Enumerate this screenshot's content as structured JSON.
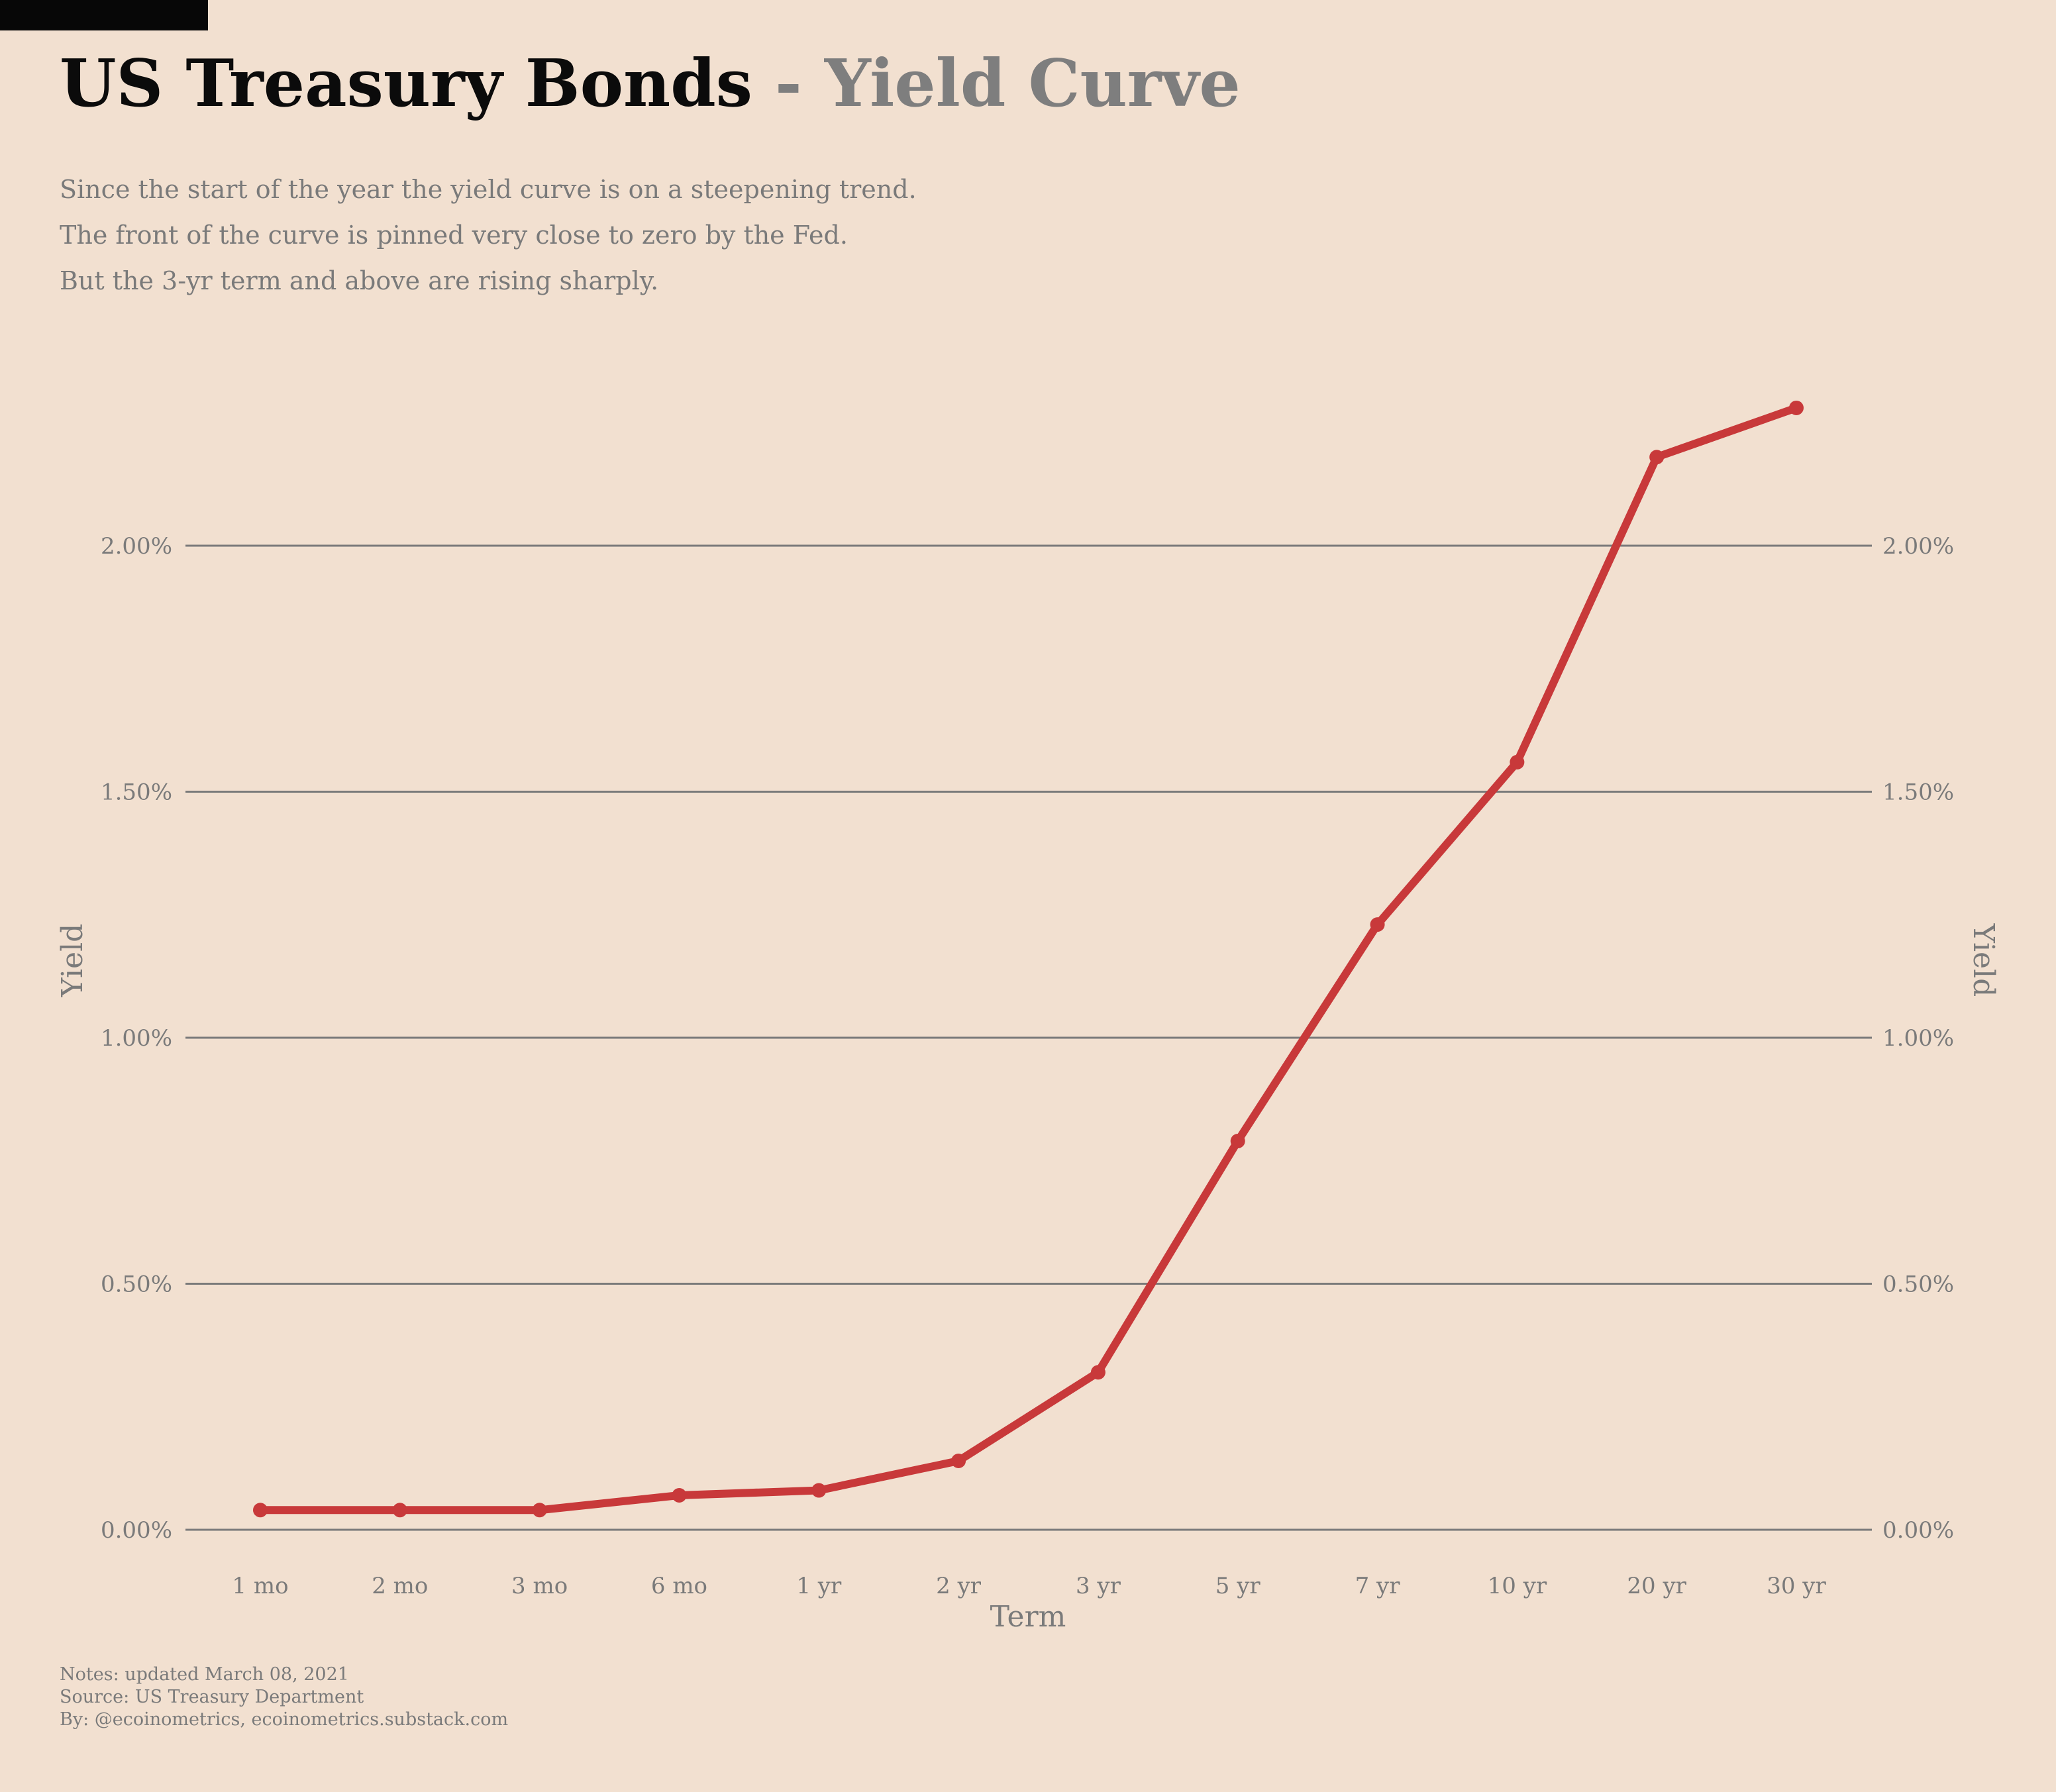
{
  "title": {
    "main": "US Treasury Bonds",
    "separator": " - ",
    "sub": "Yield Curve"
  },
  "subtitle": [
    "Since the start of the year the yield curve is on a steepening trend.",
    "The front of the curve is pinned very close to zero by the Fed.",
    "But the 3-yr term and above are rising sharply."
  ],
  "footer": {
    "notes": "Notes: updated March 08, 2021",
    "source": "Source: US Treasury Department",
    "by": "By: @ecoinometrics, ecoinometrics.substack.com"
  },
  "colors": {
    "background": "#f2e0d0",
    "line": "#c8393a",
    "grid": "#7a7a7a",
    "title_accent": "#7e7e7e"
  },
  "chart_data": {
    "type": "line",
    "xlabel": "Term",
    "ylabel": "Yield",
    "ylabel_right": "Yield",
    "categories": [
      "1 mo",
      "2 mo",
      "3 mo",
      "6 mo",
      "1 yr",
      "2 yr",
      "3 yr",
      "5 yr",
      "7 yr",
      "10 yr",
      "20 yr",
      "30 yr"
    ],
    "series": [
      {
        "values": [
          0.04,
          0.04,
          0.04,
          0.07,
          0.08,
          0.14,
          0.32,
          0.79,
          1.23,
          1.56,
          2.18,
          2.28
        ]
      }
    ],
    "ylim": [
      0,
      2.4
    ],
    "yticks": [
      0,
      0.5,
      1.0,
      1.5,
      2.0
    ],
    "ytick_labels": [
      "0.00%",
      "0.50%",
      "1.00%",
      "1.50%",
      "2.00%"
    ],
    "grid": true,
    "markers": true,
    "legend": "none"
  }
}
